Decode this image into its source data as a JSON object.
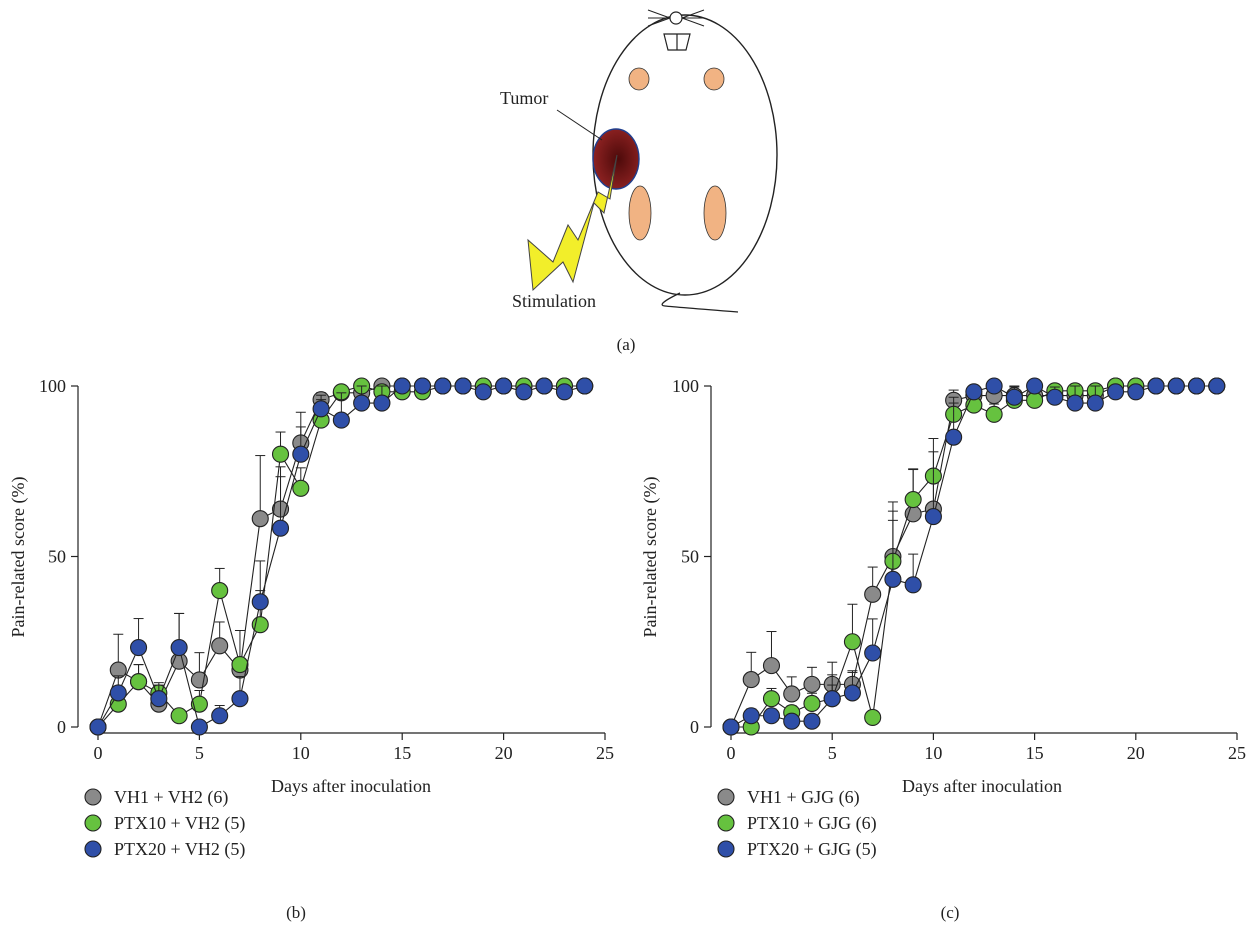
{
  "diagram": {
    "tumor_label": "Tumor",
    "stimulation_label": "Stimulation",
    "panel_label": "(a)",
    "colors": {
      "body_outline": "#222222",
      "tumor": "#7a1818",
      "tumor_edge": "#1f3f8f",
      "paws": "#f1b383",
      "bolt": "#f2ee2a"
    }
  },
  "chart_data": [
    {
      "type": "scatter",
      "panel_label": "(b)",
      "xlabel": "Days after inoculation",
      "ylabel": "Pain-related score (%)",
      "xlim": [
        0,
        25
      ],
      "ylim": [
        0,
        100
      ],
      "xticks": [
        0,
        5,
        10,
        15,
        20,
        25
      ],
      "yticks": [
        0,
        50,
        100
      ],
      "grid": false,
      "legend_position": "bottom-left",
      "series": [
        {
          "name": "VH1 + VH2 (6)",
          "color": "#8a8a8a",
          "x": [
            0,
            1,
            2,
            3,
            4,
            5,
            6,
            7,
            8,
            9,
            10,
            11,
            12,
            13,
            14,
            15,
            16,
            17,
            18,
            19,
            20,
            21,
            22,
            23,
            24
          ],
          "y": [
            0,
            16.7,
            13.3,
            6.7,
            19.3,
            13.8,
            23.8,
            16.7,
            61.1,
            63.9,
            83.3,
            96,
            98,
            98,
            100,
            100,
            100,
            100,
            100,
            100,
            100,
            100,
            100,
            100,
            100
          ],
          "err": [
            0,
            10.5,
            5,
            3,
            14,
            8,
            7,
            3,
            18.5,
            9.5,
            9,
            2,
            2,
            2,
            0,
            0,
            0,
            0,
            0,
            0,
            0,
            0,
            0,
            0,
            0
          ]
        },
        {
          "name": "PTX10 + VH2 (5)",
          "color": "#66c23f",
          "x": [
            0,
            1,
            2,
            3,
            4,
            5,
            6,
            7,
            8,
            9,
            10,
            11,
            12,
            13,
            14,
            15,
            16,
            17,
            18,
            19,
            20,
            21,
            22,
            23,
            24
          ],
          "y": [
            0,
            6.7,
            13.3,
            10,
            3.3,
            6.7,
            40,
            18.3,
            30,
            80,
            70,
            90,
            98.3,
            100,
            98.3,
            98.3,
            98.3,
            100,
            100,
            100,
            100,
            100,
            100,
            100,
            100
          ],
          "err": [
            0,
            4,
            5,
            3,
            0,
            4,
            6.5,
            10,
            10,
            6.5,
            6,
            6,
            1.7,
            0,
            1.7,
            1.7,
            1.7,
            0,
            0,
            0,
            0,
            0,
            0,
            0,
            0
          ]
        },
        {
          "name": "PTX20 + VH2 (5)",
          "color": "#2f4fa8",
          "x": [
            0,
            1,
            2,
            3,
            4,
            5,
            6,
            7,
            8,
            9,
            10,
            11,
            12,
            13,
            14,
            15,
            16,
            17,
            18,
            19,
            20,
            21,
            22,
            23,
            24
          ],
          "y": [
            0,
            10,
            23.3,
            8.3,
            23.3,
            0,
            3.3,
            8.3,
            36.7,
            58.3,
            80,
            93.3,
            90,
            95,
            95,
            100,
            100,
            100,
            100,
            98.3,
            100,
            98.3,
            100,
            98.3,
            100
          ],
          "err": [
            0,
            5,
            8.5,
            4,
            10,
            0,
            3,
            6.5,
            12,
            18,
            8,
            4,
            8,
            5,
            5,
            0,
            0,
            0,
            0,
            1.7,
            0,
            1.7,
            0,
            1.7,
            0
          ]
        }
      ]
    },
    {
      "type": "scatter",
      "panel_label": "(c)",
      "xlabel": "Days after inoculation",
      "ylabel": "Pain-related score (%)",
      "xlim": [
        0,
        25
      ],
      "ylim": [
        0,
        100
      ],
      "xticks": [
        0,
        5,
        10,
        15,
        20,
        25
      ],
      "yticks": [
        0,
        50,
        100
      ],
      "grid": false,
      "legend_position": "bottom-left",
      "series": [
        {
          "name": "VH1 + GJG (6)",
          "color": "#8a8a8a",
          "x": [
            0,
            1,
            2,
            3,
            4,
            5,
            6,
            7,
            8,
            9,
            10,
            11,
            12,
            13,
            14,
            15,
            16,
            17,
            18,
            19,
            20,
            21,
            22,
            23,
            24
          ],
          "y": [
            0,
            13.9,
            18,
            9.7,
            12.5,
            12.5,
            12.5,
            38.9,
            50,
            62.5,
            63.9,
            95.8,
            97.2,
            97.2,
            97.2,
            97.2,
            97.2,
            97.2,
            97.2,
            100,
            100,
            100,
            100,
            100,
            100
          ],
          "err": [
            0,
            8,
            10,
            5,
            5,
            6.5,
            4,
            8,
            16,
            13,
            10,
            3,
            2.8,
            2.8,
            2.8,
            2.8,
            2.8,
            2.8,
            2.8,
            0,
            0,
            0,
            0,
            0,
            0
          ]
        },
        {
          "name": "PTX10 + GJG (6)",
          "color": "#66c23f",
          "x": [
            0,
            1,
            2,
            3,
            4,
            5,
            6,
            7,
            8,
            9,
            10,
            11,
            12,
            13,
            14,
            15,
            16,
            17,
            18,
            19,
            20,
            21,
            22,
            23,
            24
          ],
          "y": [
            0,
            0,
            8.3,
            4.2,
            6.9,
            8.3,
            25,
            2.8,
            48.6,
            66.7,
            73.6,
            91.7,
            94.4,
            91.7,
            95.8,
            95.8,
            98.6,
            98.6,
            98.6,
            100,
            100,
            100,
            100,
            100,
            100
          ],
          "err": [
            0,
            0,
            3,
            2,
            3,
            4,
            11,
            0,
            12,
            9,
            11,
            5,
            3.5,
            3,
            2.5,
            2.5,
            1.4,
            1.4,
            1.4,
            0,
            0,
            0,
            0,
            0,
            0
          ]
        },
        {
          "name": "PTX20 + GJG (5)",
          "color": "#2f4fa8",
          "x": [
            0,
            1,
            2,
            3,
            4,
            5,
            6,
            7,
            8,
            9,
            10,
            11,
            12,
            13,
            14,
            15,
            16,
            17,
            18,
            19,
            20,
            21,
            22,
            23,
            24
          ],
          "y": [
            0,
            3.3,
            3.3,
            1.7,
            1.7,
            8.3,
            10,
            21.7,
            43.3,
            41.7,
            61.7,
            85,
            98.3,
            100,
            96.7,
            100,
            96.7,
            95,
            95,
            98.3,
            98.3,
            100,
            100,
            100,
            100
          ],
          "err": [
            0,
            2,
            2,
            1.7,
            1.7,
            7,
            6,
            10,
            20,
            9,
            19,
            10,
            1.7,
            0,
            3,
            0,
            3,
            5,
            5,
            1.7,
            1.7,
            0,
            0,
            0,
            0
          ]
        }
      ]
    }
  ]
}
